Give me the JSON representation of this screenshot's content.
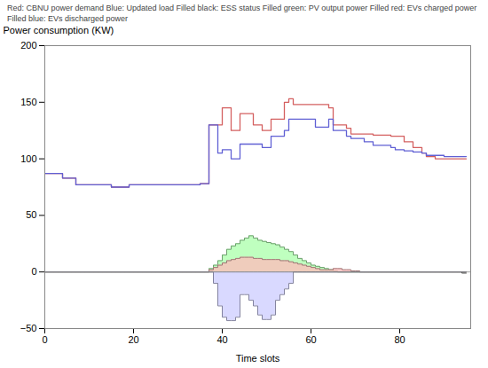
{
  "chart_data": {
    "type": "line",
    "xlabel": "Time slots",
    "ylabel": "Power consumption (KW)",
    "annotation": "Red: CBNU power demand   Blue: Updated load   Filled black: ESS status   Filled green: PV output power   Filled red: EVs charged power   Filled blue: EVs discharged power",
    "xlim": [
      0,
      96
    ],
    "ylim": [
      -50,
      200
    ],
    "xticks": [
      0,
      20,
      40,
      60,
      80
    ],
    "yticks": [
      -50,
      0,
      50,
      100,
      150,
      200
    ],
    "grid": false,
    "x": [
      0,
      1,
      2,
      3,
      4,
      5,
      6,
      7,
      8,
      9,
      10,
      11,
      12,
      13,
      14,
      15,
      16,
      17,
      18,
      19,
      20,
      21,
      22,
      23,
      24,
      25,
      26,
      27,
      28,
      29,
      30,
      31,
      32,
      33,
      34,
      35,
      36,
      37,
      38,
      39,
      40,
      41,
      42,
      43,
      44,
      45,
      46,
      47,
      48,
      49,
      50,
      51,
      52,
      53,
      54,
      55,
      56,
      57,
      58,
      59,
      60,
      61,
      62,
      63,
      64,
      65,
      66,
      67,
      68,
      69,
      70,
      71,
      72,
      73,
      74,
      75,
      76,
      77,
      78,
      79,
      80,
      81,
      82,
      83,
      84,
      85,
      86,
      87,
      88,
      89,
      90,
      91,
      92,
      93,
      94,
      95
    ],
    "series": [
      {
        "type": "area",
        "color": "#555555",
        "values": [
          0,
          0,
          0,
          0,
          0,
          0,
          0,
          0,
          0,
          0,
          0,
          0,
          0,
          0,
          0,
          0,
          0,
          0,
          0,
          0,
          0,
          0,
          0,
          0,
          0,
          0,
          0,
          0,
          0,
          0,
          0,
          0,
          0,
          0,
          0,
          0,
          0,
          0,
          0,
          0,
          0,
          0,
          0,
          0,
          0,
          0,
          0,
          0,
          0,
          0,
          0,
          0,
          0,
          0,
          0,
          0,
          0,
          0,
          0,
          0,
          0,
          0,
          0,
          0,
          0,
          0,
          0,
          0,
          0,
          0,
          0,
          0,
          0,
          0,
          0,
          0,
          0,
          0,
          0,
          0,
          0,
          0,
          0,
          0,
          0,
          0,
          0,
          0,
          0,
          0,
          0,
          0,
          0,
          0,
          -1,
          -1
        ]
      },
      {
        "type": "area",
        "color": "#aaffaa",
        "values": [
          0,
          0,
          0,
          0,
          0,
          0,
          0,
          0,
          0,
          0,
          0,
          0,
          0,
          0,
          0,
          0,
          0,
          0,
          0,
          0,
          0,
          0,
          0,
          0,
          0,
          0,
          0,
          0,
          0,
          0,
          0,
          0,
          0,
          0,
          0,
          0,
          0,
          3,
          6,
          10,
          15,
          20,
          23,
          25,
          28,
          30,
          32,
          30,
          28,
          27,
          26,
          25,
          24,
          22,
          20,
          18,
          15,
          12,
          10,
          8,
          6,
          5,
          4,
          3,
          2,
          1,
          0,
          0,
          0,
          0,
          0,
          0,
          0,
          0,
          0,
          0,
          0,
          0,
          0,
          0,
          0,
          0,
          0,
          0,
          0,
          0,
          0,
          0,
          0,
          0,
          0,
          0,
          0,
          0,
          0,
          0
        ]
      },
      {
        "type": "area",
        "color": "#ffbbbb",
        "values": [
          0,
          0,
          0,
          0,
          0,
          0,
          0,
          0,
          0,
          0,
          0,
          0,
          0,
          0,
          0,
          0,
          0,
          0,
          0,
          0,
          0,
          0,
          0,
          0,
          0,
          0,
          0,
          0,
          0,
          0,
          0,
          0,
          0,
          0,
          0,
          0,
          0,
          2,
          4,
          6,
          8,
          10,
          11,
          12,
          13,
          13,
          13,
          12,
          12,
          11,
          11,
          11,
          11,
          10,
          10,
          9,
          8,
          7,
          6,
          5,
          4,
          3,
          2,
          2,
          2,
          3,
          3,
          2,
          2,
          1,
          1,
          0,
          0,
          0,
          0,
          0,
          0,
          0,
          0,
          0,
          0,
          0,
          0,
          0,
          0,
          0,
          0,
          0,
          0,
          0,
          0,
          0,
          0,
          0,
          0,
          0
        ]
      },
      {
        "type": "area",
        "color": "#ccccff",
        "values": [
          0,
          0,
          0,
          0,
          0,
          0,
          0,
          0,
          0,
          0,
          0,
          0,
          0,
          0,
          0,
          0,
          0,
          0,
          0,
          0,
          0,
          0,
          0,
          0,
          0,
          0,
          0,
          0,
          0,
          0,
          0,
          0,
          0,
          0,
          0,
          0,
          0,
          0,
          -10,
          -30,
          -40,
          -43,
          -43,
          -40,
          -20,
          -20,
          -25,
          -30,
          -38,
          -42,
          -42,
          -38,
          -25,
          -20,
          -15,
          -10,
          0,
          0,
          0,
          0,
          0,
          0,
          0,
          0,
          0,
          0,
          0,
          0,
          0,
          0,
          0,
          0,
          0,
          0,
          0,
          0,
          0,
          0,
          0,
          0,
          0,
          0,
          0,
          0,
          0,
          0,
          0,
          0,
          0,
          0,
          0,
          0,
          0,
          0,
          0,
          0
        ]
      },
      {
        "type": "line",
        "color": "#d46060",
        "values": [
          87,
          87,
          87,
          87,
          83,
          83,
          83,
          77,
          77,
          77,
          77,
          77,
          77,
          77,
          77,
          75,
          75,
          75,
          75,
          77,
          77,
          77,
          77,
          77,
          77,
          77,
          77,
          77,
          77,
          77,
          77,
          77,
          77,
          77,
          77,
          78,
          78,
          130,
          130,
          130,
          145,
          145,
          125,
          125,
          140,
          140,
          140,
          130,
          130,
          125,
          125,
          135,
          135,
          135,
          150,
          153,
          148,
          148,
          148,
          148,
          148,
          148,
          148,
          148,
          145,
          130,
          130,
          130,
          127,
          122,
          122,
          122,
          122,
          122,
          121,
          121,
          121,
          121,
          120,
          120,
          120,
          115,
          115,
          110,
          110,
          105,
          102,
          102,
          100,
          100,
          100,
          100,
          100,
          100,
          100,
          100
        ]
      },
      {
        "type": "line",
        "color": "#6060d4",
        "values": [
          87,
          87,
          87,
          87,
          83,
          83,
          83,
          77,
          77,
          77,
          77,
          77,
          77,
          77,
          77,
          75,
          75,
          75,
          75,
          77,
          77,
          77,
          77,
          77,
          77,
          77,
          77,
          77,
          77,
          77,
          77,
          77,
          77,
          77,
          77,
          78,
          78,
          130,
          130,
          105,
          108,
          108,
          100,
          100,
          113,
          113,
          113,
          113,
          113,
          110,
          110,
          120,
          120,
          120,
          125,
          135,
          135,
          135,
          135,
          135,
          135,
          128,
          128,
          128,
          135,
          125,
          125,
          125,
          120,
          118,
          118,
          118,
          115,
          115,
          112,
          112,
          112,
          112,
          110,
          108,
          108,
          107,
          107,
          106,
          106,
          105,
          103,
          103,
          103,
          103,
          102,
          102,
          102,
          102,
          102,
          102
        ]
      }
    ]
  }
}
